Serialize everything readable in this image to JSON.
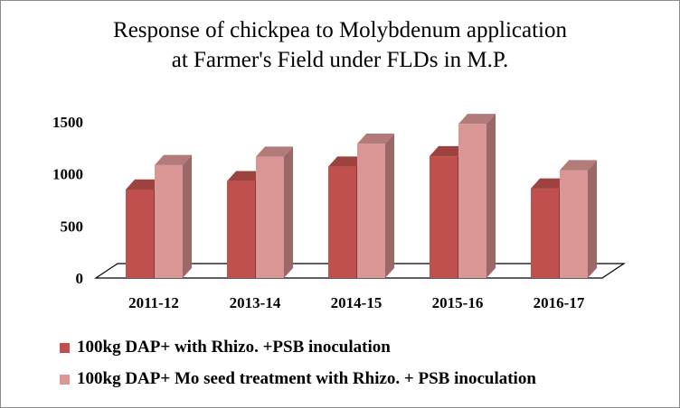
{
  "chart_data": {
    "type": "bar",
    "title_line1": "Response of chickpea  to Molybdenum  application",
    "title_line2": "at Farmer's  Field under FLDs in M.P.",
    "categories": [
      "2011-12",
      "2013-14",
      "2014-15",
      "2015-16",
      "2016-17"
    ],
    "series": [
      {
        "name": "100kg DAP+ with Rhizo. +PSB inoculation",
        "values": [
          850,
          930,
          1070,
          1170,
          860
        ],
        "color": "#c0504d"
      },
      {
        "name": "100kg DAP+ Mo seed treatment with Rhizo. + PSB inoculation",
        "values": [
          1085,
          1165,
          1290,
          1480,
          1035
        ],
        "color": "#d99694"
      }
    ],
    "ylim": [
      0,
      1500
    ],
    "yticks": [
      "0",
      "500",
      "1000",
      "1500"
    ],
    "grid": false,
    "legend_position": "bottom",
    "style": "3d-column"
  }
}
